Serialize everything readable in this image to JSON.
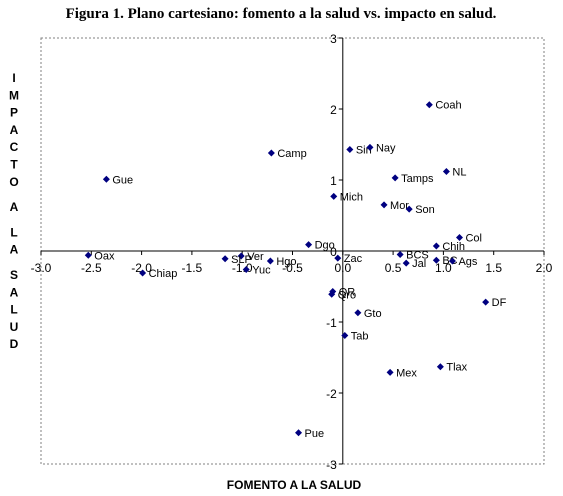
{
  "chart_data": {
    "type": "scatter",
    "title": "Figura 1. Plano cartesiano: fomento a la salud vs. impacto en salud.",
    "xlabel": "FOMENTO A LA SALUD",
    "ylabel": "IMPACTO A LA SALUD",
    "xlim": [
      -3.0,
      2.0
    ],
    "ylim": [
      -3,
      3
    ],
    "xticks": [
      -3.0,
      -2.5,
      -2.0,
      -1.5,
      -1.0,
      -0.5,
      0.0,
      0.5,
      1.0,
      1.5,
      2.0
    ],
    "xtick_labels": [
      "-3.0",
      "-2.5",
      "-2.0",
      "-1.5",
      "-1.0",
      "-0.5",
      "0.0",
      "0.5",
      "1.0",
      "1.5",
      "2.0"
    ],
    "yticks": [
      -3,
      -2,
      -1,
      0,
      1,
      2,
      3
    ],
    "ytick_labels": [
      "-3",
      "-2",
      "-1",
      "0",
      "1",
      "2",
      "3"
    ],
    "grid": false,
    "marker_color": "#000080",
    "points": [
      {
        "label": "Coah",
        "x": 0.86,
        "y": 2.06
      },
      {
        "label": "Sin",
        "x": 0.07,
        "y": 1.43
      },
      {
        "label": "Nay",
        "x": 0.27,
        "y": 1.46
      },
      {
        "label": "Camp",
        "x": -0.71,
        "y": 1.38
      },
      {
        "label": "Tamps",
        "x": 0.52,
        "y": 1.03
      },
      {
        "label": "NL",
        "x": 1.03,
        "y": 1.12
      },
      {
        "label": "Gue",
        "x": -2.35,
        "y": 1.01
      },
      {
        "label": "Mich",
        "x": -0.09,
        "y": 0.77
      },
      {
        "label": "Mor",
        "x": 0.41,
        "y": 0.65
      },
      {
        "label": "Son",
        "x": 0.66,
        "y": 0.59
      },
      {
        "label": "Col",
        "x": 1.16,
        "y": 0.19
      },
      {
        "label": "Chih",
        "x": 0.93,
        "y": 0.07
      },
      {
        "label": "Dgo",
        "x": -0.34,
        "y": 0.09
      },
      {
        "label": "Oax",
        "x": -2.53,
        "y": -0.06
      },
      {
        "label": "Ver",
        "x": -1.01,
        "y": -0.07
      },
      {
        "label": "SLP",
        "x": -1.17,
        "y": -0.11
      },
      {
        "label": "Zac",
        "x": -0.05,
        "y": -0.1
      },
      {
        "label": "BCS",
        "x": 0.57,
        "y": -0.05
      },
      {
        "label": "BC",
        "x": 0.93,
        "y": -0.13
      },
      {
        "label": "Ags",
        "x": 1.09,
        "y": -0.14
      },
      {
        "label": "Hgo",
        "x": -0.72,
        "y": -0.14
      },
      {
        "label": "Jal",
        "x": 0.63,
        "y": -0.17
      },
      {
        "label": "Yuc",
        "x": -0.96,
        "y": -0.26
      },
      {
        "label": "Chiap",
        "x": -1.99,
        "y": -0.31
      },
      {
        "label": "Qro",
        "x": -0.11,
        "y": -0.61
      },
      {
        "label": "QR",
        "x": -0.1,
        "y": -0.57
      },
      {
        "label": "DF",
        "x": 1.42,
        "y": -0.72
      },
      {
        "label": "Gto",
        "x": 0.15,
        "y": -0.87
      },
      {
        "label": "Tab",
        "x": 0.02,
        "y": -1.19
      },
      {
        "label": "Tlax",
        "x": 0.97,
        "y": -1.63
      },
      {
        "label": "Mex",
        "x": 0.47,
        "y": -1.71
      },
      {
        "label": "Pue",
        "x": -0.44,
        "y": -2.56
      }
    ]
  }
}
